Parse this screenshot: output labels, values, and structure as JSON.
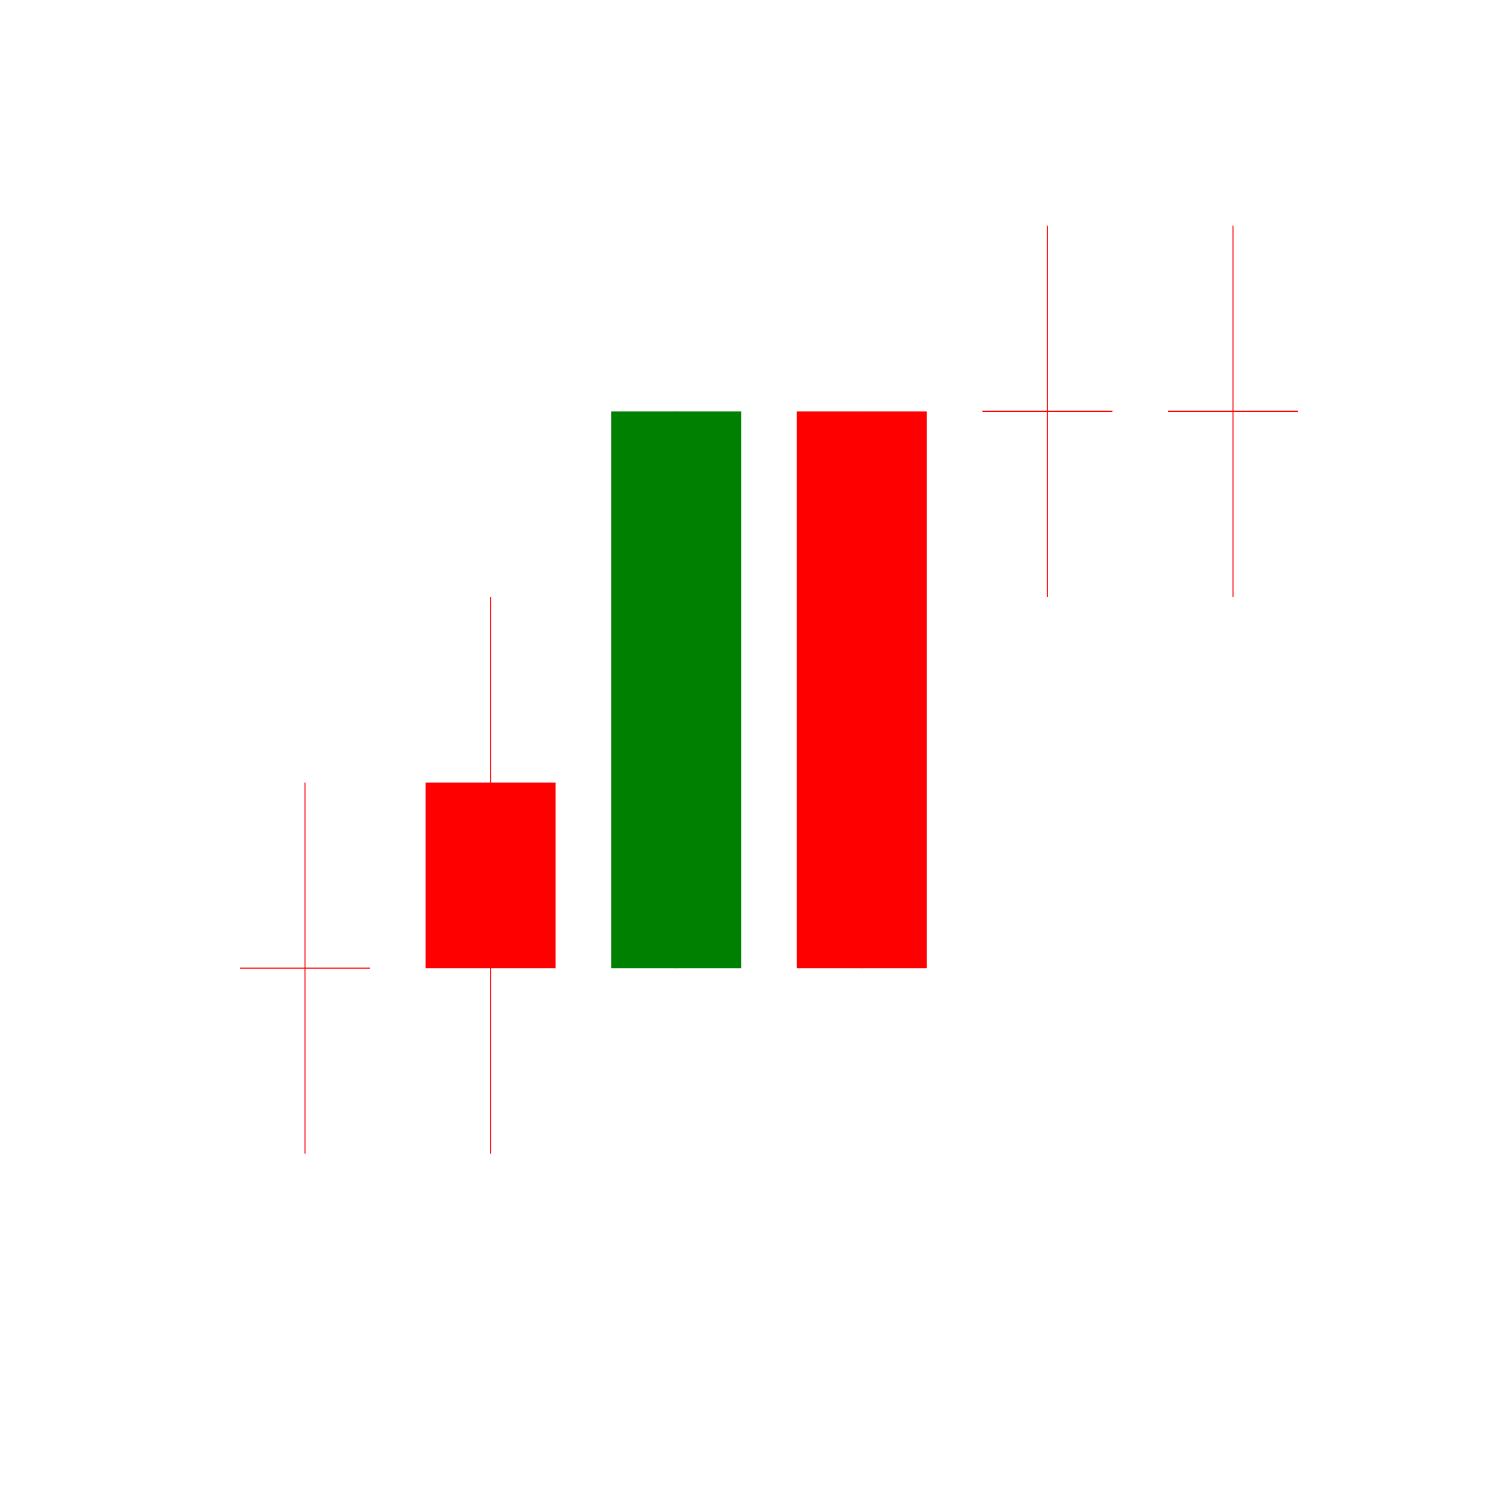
{
  "chart_data": {
    "type": "candlestick",
    "title": "",
    "xlabel": "",
    "ylabel": "",
    "ylim": [
      0,
      10
    ],
    "grid": false,
    "legend": "none",
    "up_color": "#008000",
    "down_color": "#ff0000",
    "candles": [
      {
        "open": 3,
        "high": 4,
        "low": 2,
        "close": 3,
        "color": "#ff0000"
      },
      {
        "open": 4,
        "high": 5,
        "low": 2,
        "close": 3,
        "color": "#ff0000"
      },
      {
        "open": 3,
        "high": 6,
        "low": 3,
        "close": 6,
        "color": "#008000"
      },
      {
        "open": 6,
        "high": 6,
        "low": 3,
        "close": 3,
        "color": "#ff0000"
      },
      {
        "open": 6,
        "high": 7,
        "low": 5,
        "close": 6,
        "color": "#ff0000"
      },
      {
        "open": 6,
        "high": 7,
        "low": 5,
        "close": 6,
        "color": "#ff0000"
      }
    ]
  }
}
